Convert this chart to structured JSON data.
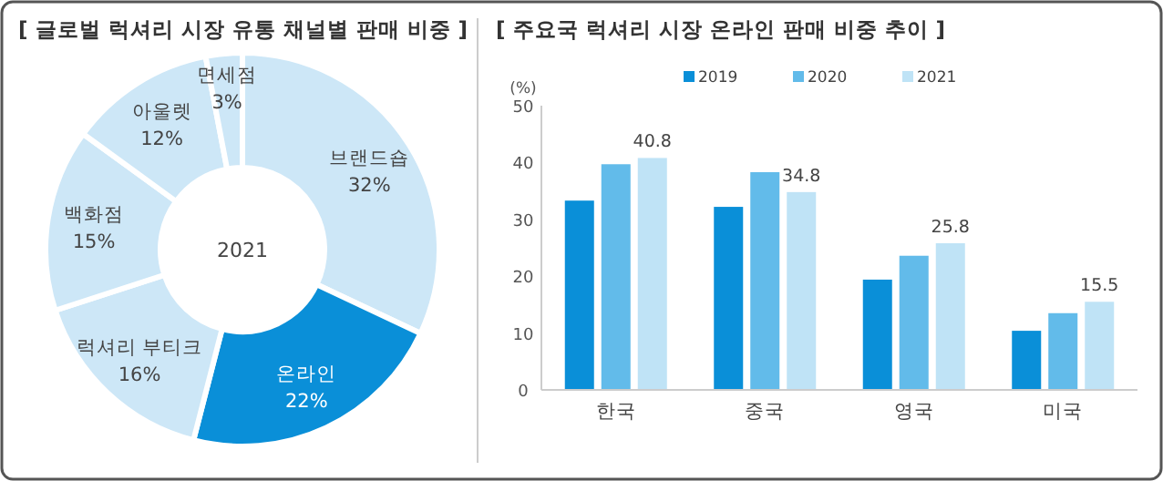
{
  "chart_data": [
    {
      "type": "donut",
      "title": "[ 글로벌 럭셔리 시장 유통 채널별 판매 비중 ]",
      "categories": [
        "브랜드숍",
        "온라인",
        "럭셔리 부티크",
        "백화점",
        "아울렛",
        "면세점"
      ],
      "values": [
        32,
        22,
        16,
        15,
        12,
        3
      ],
      "colors": [
        "#cde7f7",
        "#0a8fd8",
        "#cde7f7",
        "#cde7f7",
        "#cde7f7",
        "#cde7f7"
      ],
      "value_labels": [
        "32%",
        "22%",
        "16%",
        "15%",
        "12%",
        "3%"
      ],
      "annotations": [
        "2021"
      ]
    },
    {
      "type": "bar",
      "title": "[ 주요국 럭셔리 시장 온라인 판매 비중 추이 ]",
      "ylabel": "(%)",
      "categories": [
        "한국",
        "중국",
        "영국",
        "미국"
      ],
      "ylim": [
        0,
        50
      ],
      "yticks": [
        0,
        10,
        20,
        30,
        40,
        50
      ],
      "legend": "top",
      "series": [
        {
          "name": "2019",
          "color": "#0a8fd8",
          "values": [
            33.3,
            32.2,
            19.4,
            10.4
          ]
        },
        {
          "name": "2020",
          "color": "#62bbea",
          "values": [
            39.7,
            38.3,
            23.6,
            13.5
          ]
        },
        {
          "name": "2021",
          "color": "#bfe3f6",
          "values": [
            40.8,
            34.8,
            25.8,
            15.5
          ],
          "value_labels": [
            "40.8",
            "34.8",
            "25.8",
            "15.5"
          ]
        }
      ]
    }
  ]
}
